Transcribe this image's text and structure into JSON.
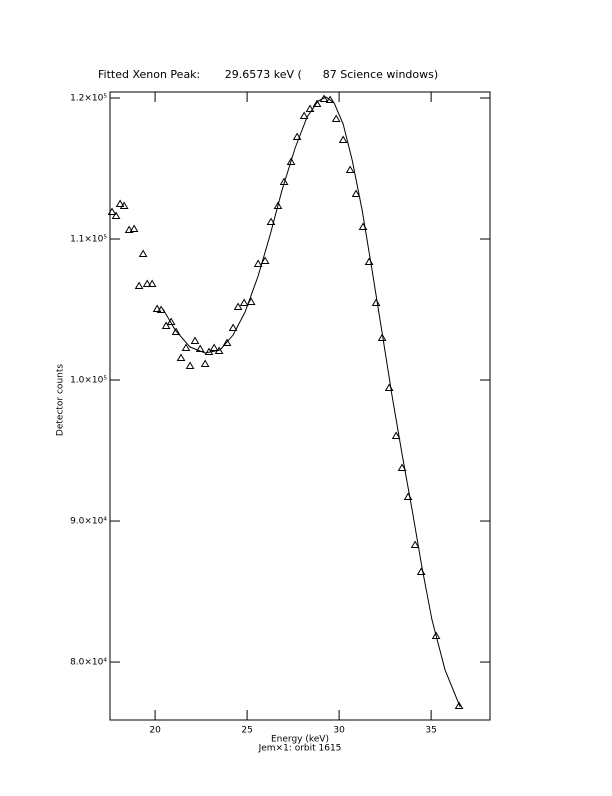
{
  "chart_data": {
    "type": "scatter",
    "title": "Fitted Xenon Peak:       29.6573 keV (      87 Science windows)",
    "x_label": "Energy (keV)",
    "subtitle": "Jem×1: orbit 1615",
    "y_label": "Detector counts",
    "xlim": [
      17.55,
      38.2
    ],
    "ylim": [
      75890,
      120425
    ],
    "xticks": [
      20,
      25,
      30,
      35
    ],
    "yticks": [
      {
        "value": 80000,
        "label": "8.0×10⁴"
      },
      {
        "value": 90000,
        "label": "9.0×10⁴"
      },
      {
        "value": 100000,
        "label": "1.0×10⁵"
      },
      {
        "value": 110000,
        "label": "1.1×10⁵"
      },
      {
        "value": 120000,
        "label": "1.2×10⁵"
      }
    ],
    "series": [
      {
        "type": "scatter",
        "color": "#000000",
        "x": [
          17.66,
          17.88,
          18.1,
          18.32,
          18.59,
          18.86,
          19.13,
          19.35,
          19.57,
          19.84,
          20.11,
          20.33,
          20.6,
          20.87,
          21.14,
          21.41,
          21.68,
          21.9,
          22.17,
          22.45,
          22.72,
          22.93,
          23.21,
          23.48,
          23.91,
          24.24,
          24.51,
          24.84,
          25.22,
          25.6,
          25.98,
          26.3,
          26.68,
          27.01,
          27.39,
          27.72,
          28.1,
          28.42,
          28.8,
          29.18,
          29.51,
          29.84,
          30.22,
          30.6,
          30.92,
          31.3,
          31.63,
          32.01,
          32.34,
          32.72,
          33.1,
          33.42,
          33.75,
          34.13,
          34.46,
          35.27,
          36.52
        ],
        "values": [
          111915,
          111631,
          112482,
          112340,
          110638,
          110709,
          106667,
          108936,
          106809,
          106809,
          105035,
          104965,
          103830,
          104113,
          103404,
          101560,
          102270,
          100993,
          102766,
          102199,
          101135,
          101986,
          102270,
          102057,
          102624,
          103688,
          105177,
          105461,
          105532,
          108227,
          108440,
          111206,
          112340,
          114043,
          115461,
          117234,
          118723,
          119220,
          119574,
          119929,
          119858,
          118511,
          117021,
          114894,
          113191,
          110851,
          108369,
          105461,
          102979,
          99433,
          96028,
          93759,
          91702,
          88298,
          86383,
          81844,
          76879
        ]
      },
      {
        "type": "line",
        "color": "#000000",
        "x": [
          20.43,
          21.09,
          21.9,
          22.72,
          23.53,
          24.24,
          24.89,
          25.6,
          26.25,
          26.9,
          27.61,
          28.26,
          28.86,
          29.29,
          29.73,
          30.22,
          30.71,
          31.25,
          31.79,
          32.34,
          32.88,
          33.42,
          33.97,
          34.51,
          35.05,
          35.76,
          36.58
        ],
        "values": [
          105035,
          103546,
          102340,
          101915,
          102128,
          103191,
          104823,
          107376,
          110284,
          113475,
          116454,
          118652,
          119787,
          120071,
          119645,
          118156,
          115603,
          112057,
          107801,
          103333,
          98865,
          94752,
          90780,
          86667,
          82979,
          79433,
          76809
        ]
      }
    ]
  }
}
